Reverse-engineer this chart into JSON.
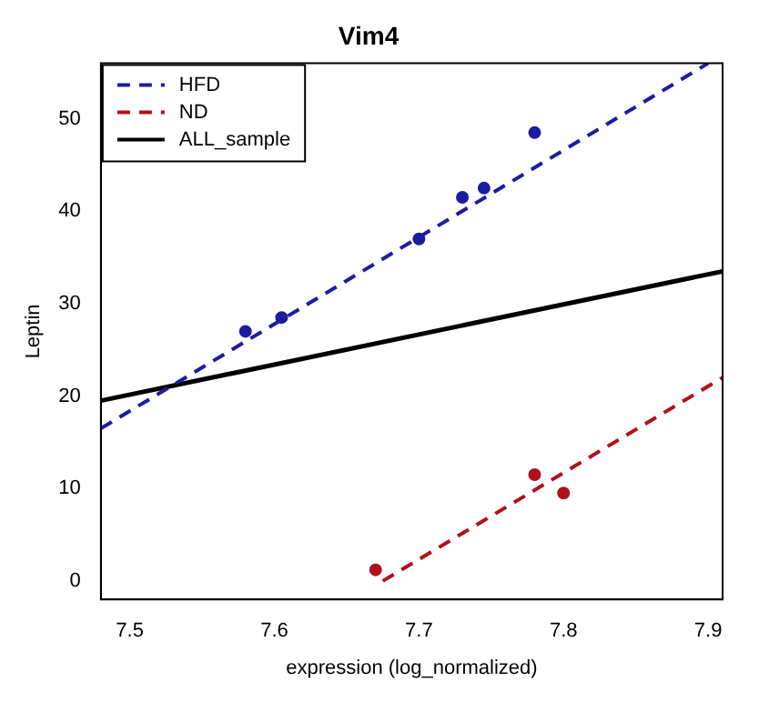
{
  "chart_data": {
    "type": "scatter",
    "title": "Vim4",
    "xlabel": "expression (log_normalized)",
    "ylabel": "Leptin",
    "xlim": [
      7.48,
      7.91
    ],
    "xticks": [
      7.5,
      7.6,
      7.7,
      7.8,
      7.9
    ],
    "ylim": [
      -2,
      56
    ],
    "yticks": [
      0,
      10,
      20,
      30,
      40,
      50
    ],
    "grid": false,
    "legend": "top left",
    "marker": "circle",
    "series": [
      {
        "color": "#1c1ca0",
        "x": [
          7.58,
          7.605,
          7.7,
          7.73,
          7.745,
          7.78
        ],
        "values": [
          27,
          28.5,
          37,
          41.5,
          42.5,
          48.5
        ]
      },
      {
        "color": "#b0101c",
        "x": [
          7.67,
          7.78,
          7.8
        ],
        "values": [
          1.2,
          11.5,
          9.5
        ]
      },
      {
        "type": "line",
        "name": "HFD",
        "color": "#1c1ca0",
        "line_style": "dashed",
        "marker": "none",
        "x": [
          7.48,
          7.9
        ],
        "values": [
          16.5,
          56
        ]
      },
      {
        "type": "line",
        "name": "ND",
        "color": "#b0101c",
        "line_style": "dashed",
        "marker": "none",
        "x": [
          7.675,
          7.91
        ],
        "values": [
          0,
          22
        ]
      },
      {
        "type": "line",
        "name": "ALL_sample",
        "color": "#000000",
        "line_style": "solid",
        "marker": "none",
        "x": [
          7.48,
          7.91
        ],
        "values": [
          19.5,
          33.5
        ]
      }
    ]
  }
}
